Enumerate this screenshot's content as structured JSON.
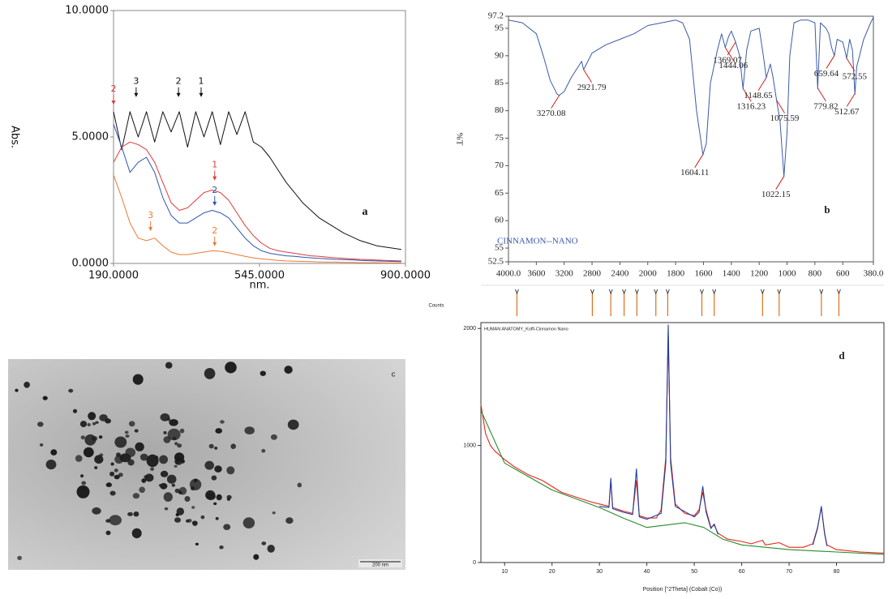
{
  "chart_data": [
    {
      "type": "line",
      "label": "a",
      "xlabel": "nm.",
      "ylabel": "Abs.",
      "xlim": [
        190,
        900
      ],
      "ylim": [
        0,
        10
      ],
      "xticks": [
        {
          "value": 190,
          "label": "190.0000"
        },
        {
          "value": 545,
          "label": "545.0000"
        },
        {
          "value": 900,
          "label": "900.0000"
        }
      ],
      "yticks": [
        {
          "value": 0,
          "label": "0.0000"
        },
        {
          "value": 5,
          "label": "5.0000"
        },
        {
          "value": 10,
          "label": "10.0000"
        }
      ],
      "x": [
        190,
        210,
        230,
        250,
        270,
        290,
        310,
        330,
        350,
        370,
        390,
        410,
        430,
        450,
        470,
        490,
        510,
        530,
        550,
        570,
        590,
        610,
        630,
        650,
        670,
        690,
        710,
        730,
        750,
        770,
        790,
        810,
        830,
        850,
        870,
        890
      ],
      "series": [
        {
          "color": "#111111",
          "values": [
            6,
            4.5,
            6,
            5,
            6,
            4.8,
            6,
            5.2,
            6,
            4.6,
            6,
            5,
            6,
            4.7,
            6,
            5.1,
            6,
            4.8,
            4.6,
            4.2,
            3.7,
            3.2,
            2.8,
            2.4,
            2.1,
            1.8,
            1.6,
            1.4,
            1.2,
            1.05,
            0.9,
            0.8,
            0.7,
            0.65,
            0.6,
            0.55
          ]
        },
        {
          "color": "#e03a3a",
          "values": [
            4.0,
            4.6,
            4.8,
            4.7,
            4.5,
            4.0,
            3.2,
            2.4,
            2.1,
            2.2,
            2.5,
            2.8,
            2.9,
            2.8,
            2.5,
            2.0,
            1.5,
            1.1,
            0.8,
            0.6,
            0.5,
            0.45,
            0.4,
            0.35,
            0.3,
            0.28,
            0.25,
            0.22,
            0.2,
            0.18,
            0.16,
            0.15,
            0.13,
            0.12,
            0.11,
            0.1
          ]
        },
        {
          "color": "#2f55b0",
          "values": [
            5.5,
            4.6,
            3.6,
            4.0,
            4.2,
            3.6,
            2.6,
            1.9,
            1.6,
            1.6,
            1.8,
            2.0,
            2.1,
            2.0,
            1.8,
            1.4,
            1.0,
            0.7,
            0.5,
            0.4,
            0.35,
            0.3,
            0.28,
            0.25,
            0.22,
            0.2,
            0.18,
            0.16,
            0.15,
            0.14,
            0.12,
            0.11,
            0.1,
            0.09,
            0.08,
            0.07
          ]
        },
        {
          "color": "#ec7a34",
          "values": [
            3.5,
            2.6,
            1.6,
            1.0,
            0.9,
            1.0,
            0.7,
            0.45,
            0.35,
            0.35,
            0.4,
            0.45,
            0.5,
            0.48,
            0.42,
            0.35,
            0.28,
            0.22,
            0.18,
            0.15,
            0.12,
            0.1,
            0.09,
            0.08,
            0.07,
            0.06,
            0.05,
            0.05,
            0.04,
            0.04,
            0.03,
            0.03,
            0.03,
            0.02,
            0.02,
            0.02
          ]
        }
      ],
      "annotations": [
        {
          "text": "3",
          "x": 245,
          "y": 6.9,
          "color": "#111111"
        },
        {
          "text": "2",
          "x": 348,
          "y": 6.9,
          "color": "#111111"
        },
        {
          "text": "1",
          "x": 403,
          "y": 6.9,
          "color": "#111111"
        },
        {
          "text": "2",
          "x": 190,
          "y": 6.6,
          "color": "#e03a3a"
        },
        {
          "text": "1",
          "x": 436,
          "y": 3.6,
          "color": "#e03a3a"
        },
        {
          "text": "2",
          "x": 436,
          "y": 2.6,
          "color": "#2f55b0"
        },
        {
          "text": "3",
          "x": 280,
          "y": 1.6,
          "color": "#ec7a34"
        },
        {
          "text": "2",
          "x": 436,
          "y": 1.0,
          "color": "#ec7a34"
        }
      ]
    },
    {
      "type": "line",
      "label": "b",
      "ylabel": "%T",
      "legend": "CINNAMON--NANO",
      "xscale": "piecewise",
      "xlim": [
        4000,
        380
      ],
      "ylim": [
        52.5,
        97.2
      ],
      "xticks": [
        {
          "value": 4000,
          "label": "4000.0"
        },
        3600,
        3200,
        2800,
        2400,
        2000,
        1800,
        1600,
        1400,
        1200,
        1000,
        800,
        600,
        {
          "value": 380,
          "label": "380.0"
        }
      ],
      "yticks": [
        97.2,
        95,
        90,
        85,
        80,
        75,
        70,
        65,
        60,
        55,
        52.5
      ],
      "x": [
        4000,
        3800,
        3600,
        3500,
        3400,
        3300,
        3270,
        3200,
        3100,
        3000,
        2950,
        2922,
        2880,
        2800,
        2600,
        2400,
        2200,
        2000,
        1900,
        1800,
        1750,
        1700,
        1650,
        1604,
        1580,
        1550,
        1500,
        1470,
        1444,
        1420,
        1400,
        1369,
        1340,
        1316,
        1290,
        1260,
        1200,
        1170,
        1149,
        1120,
        1100,
        1076,
        1050,
        1022,
        1000,
        980,
        950,
        900,
        850,
        800,
        780,
        760,
        720,
        700,
        680,
        660,
        640,
        600,
        580,
        573,
        550,
        530,
        513,
        500,
        450,
        400,
        380
      ],
      "series": [
        {
          "color": "#3b5aa8",
          "values": [
            96.5,
            96,
            94,
            90,
            85.5,
            83,
            82.8,
            83.5,
            86,
            88,
            89,
            87.5,
            88.5,
            90.5,
            92,
            93,
            94,
            95.5,
            96,
            96.5,
            96,
            93,
            80,
            72,
            74,
            85,
            91,
            94,
            91.5,
            93.5,
            94.5,
            92.5,
            90,
            84,
            91,
            94.5,
            95,
            90,
            86,
            88.5,
            86,
            82,
            78,
            68,
            76,
            90,
            96,
            96.5,
            96.5,
            96,
            84,
            96,
            95,
            94,
            91.5,
            90,
            93,
            92.5,
            90.5,
            89.5,
            93,
            91,
            83,
            88,
            93,
            96,
            97
          ]
        }
      ],
      "peaks": [
        3270.08,
        2921.79,
        1604.11,
        1444.06,
        1369.07,
        1316.23,
        1148.65,
        1075.59,
        1022.15,
        779.82,
        659.64,
        572.55,
        512.67
      ]
    },
    {
      "type": "line",
      "label": "d",
      "title": "HUMAN ANATOMY_Koffi-Cinnamon Nano",
      "xlabel": "Position [°2Theta] (Cobalt (Co))",
      "ylabel": "Counts",
      "xlim": [
        5,
        90
      ],
      "ylim": [
        0,
        2050
      ],
      "xticks": [
        10,
        20,
        30,
        40,
        50,
        60,
        70,
        80
      ],
      "yticks": [
        0,
        1000,
        2000
      ],
      "series": [
        {
          "color": "#e8241c",
          "x": [
            5,
            6,
            7,
            8,
            10,
            12,
            15,
            18,
            20,
            22,
            25,
            28,
            30,
            32,
            32.4,
            32.8,
            35,
            37,
            37.8,
            38.4,
            40,
            42,
            43,
            44,
            44.5,
            45,
            46,
            48,
            50,
            51,
            51.8,
            52.5,
            53.5,
            54.2,
            55,
            57,
            60,
            62,
            64.4,
            65,
            67.9,
            70,
            73,
            75,
            76,
            76.8,
            77.5,
            78,
            80,
            85,
            90
          ],
          "values": [
            1350,
            1100,
            1000,
            950,
            880,
            820,
            750,
            700,
            650,
            600,
            560,
            520,
            500,
            480,
            700,
            470,
            440,
            420,
            700,
            400,
            380,
            380,
            450,
            900,
            1950,
            900,
            500,
            420,
            400,
            450,
            600,
            450,
            300,
            320,
            250,
            200,
            180,
            160,
            190,
            150,
            170,
            130,
            130,
            160,
            300,
            470,
            250,
            150,
            110,
            90,
            80
          ]
        },
        {
          "color": "#1f3f9a",
          "x": [
            30,
            32,
            32.4,
            32.8,
            35,
            37,
            37.8,
            38.4,
            40,
            43,
            44,
            44.5,
            45,
            46,
            50,
            51,
            51.8,
            52.5,
            53.5,
            54.2,
            55,
            65,
            75,
            76,
            76.8,
            77.5,
            78
          ],
          "values": [
            480,
            470,
            720,
            460,
            430,
            410,
            800,
            390,
            370,
            420,
            850,
            2030,
            850,
            480,
            390,
            430,
            650,
            430,
            290,
            330,
            240,
            null,
            150,
            290,
            480,
            240,
            140
          ]
        },
        {
          "color": "#2a8a2a",
          "x": [
            5,
            10,
            20,
            30,
            35,
            40,
            44,
            48,
            52,
            56,
            60,
            70,
            80,
            90
          ],
          "values": [
            1300,
            850,
            620,
            470,
            380,
            300,
            320,
            340,
            300,
            200,
            150,
            110,
            90,
            70
          ]
        }
      ],
      "reference_peaks": [
        12.6,
        28.5,
        32.4,
        35.2,
        37.9,
        41.9,
        44.4,
        51.6,
        54.2,
        64.4,
        67.9,
        76.8,
        80.5
      ],
      "reference_color": "#e07020"
    }
  ],
  "image": {
    "label": "c",
    "scale_bar": "200 nm"
  }
}
